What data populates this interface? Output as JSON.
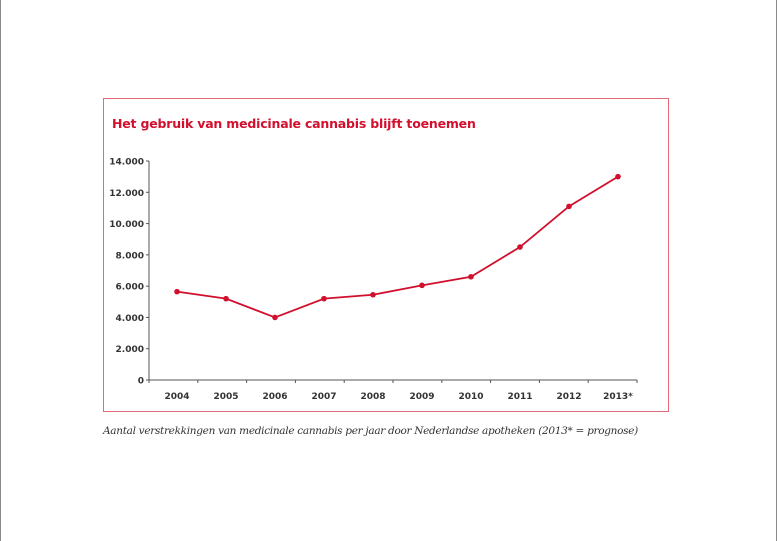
{
  "chart_data": {
    "type": "line",
    "title": "Het gebruik van medicinale cannabis blijft toenemen",
    "caption": "Aantal verstrekkingen van medicinale cannabis per jaar door Nederlandse apotheken (2013* = prognose)",
    "xlabel": "",
    "ylabel": "",
    "categories": [
      "2004",
      "2005",
      "2006",
      "2007",
      "2008",
      "2009",
      "2010",
      "2011",
      "2012",
      "2013*"
    ],
    "series": [
      {
        "name": "Verstrekkingen",
        "values": [
          5650,
          5200,
          4000,
          5200,
          5450,
          6050,
          6600,
          8500,
          11100,
          13000
        ],
        "color": "#d2102e"
      }
    ],
    "ylim": [
      0,
      14000
    ],
    "yticks": [
      0,
      2000,
      4000,
      6000,
      8000,
      10000,
      12000,
      14000
    ],
    "ytick_labels": [
      "0",
      "2.000",
      "4.000",
      "6.000",
      "8.000",
      "10.000",
      "12.000",
      "14.000"
    ],
    "grid": false,
    "legend": "none"
  }
}
